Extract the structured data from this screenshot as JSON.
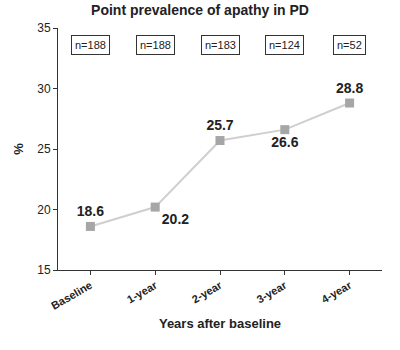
{
  "chart_data": {
    "type": "line",
    "title": "Point prevalence of apathy in PD",
    "x_label": "Years after baseline",
    "y_label": "%",
    "categories": [
      "Baseline",
      "1-year",
      "2-year",
      "3-year",
      "4-year"
    ],
    "values": [
      18.6,
      20.2,
      25.7,
      26.6,
      28.8
    ],
    "annotations": [
      "n=188",
      "n=188",
      "n=183",
      "n=124",
      "n=52"
    ],
    "color": "#a6a6a6",
    "marker": "square",
    "line_style": "solid",
    "ylim": [
      15,
      35
    ],
    "yticks": [
      15,
      20,
      25,
      30,
      35
    ],
    "grid": false,
    "data_labels": true
  }
}
